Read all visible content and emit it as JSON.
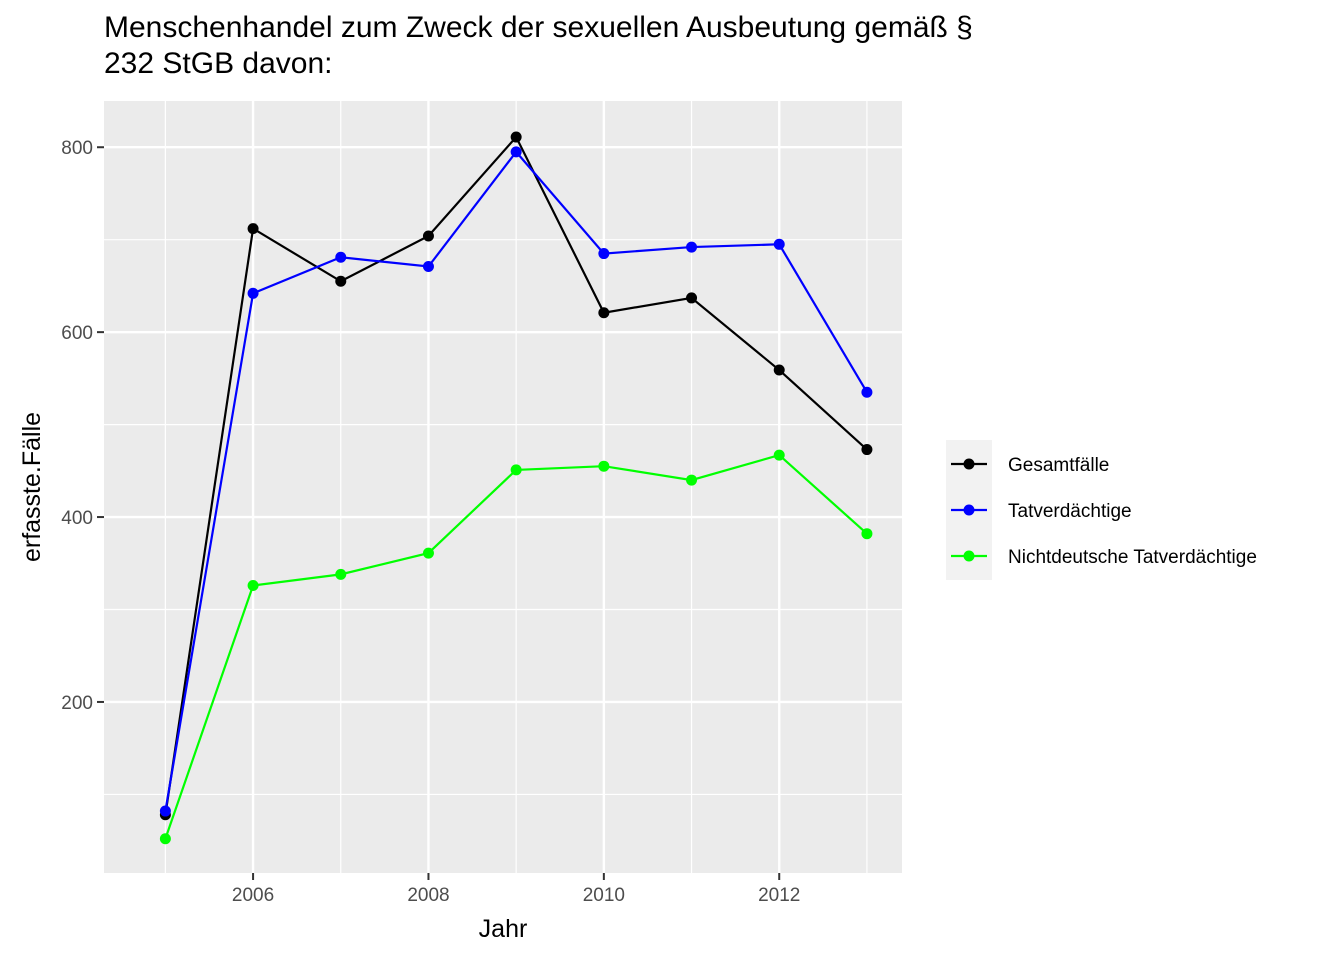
{
  "chart_data": {
    "type": "line",
    "title": "Menschenhandel zum Zweck der sexuellen Ausbeutung gemäß §\n232 StGB davon:",
    "xlabel": "Jahr",
    "ylabel": "erfasste.Fälle",
    "x": [
      2005,
      2006,
      2007,
      2008,
      2009,
      2010,
      2011,
      2012,
      2013
    ],
    "xlim": [
      2004.3,
      2013.4
    ],
    "ylim": [
      15,
      850
    ],
    "xticks": [
      2006,
      2008,
      2010,
      2012
    ],
    "yticks": [
      200,
      400,
      600,
      800
    ],
    "grid": true,
    "legend_position": "right",
    "series": [
      {
        "name": "Gesamtfälle",
        "color": "#000000",
        "values": [
          78,
          712,
          655,
          704,
          811,
          621,
          637,
          559,
          473
        ]
      },
      {
        "name": "Tatverdächtige",
        "color": "#0000ff",
        "values": [
          82,
          642,
          681,
          671,
          795,
          685,
          692,
          695,
          535
        ]
      },
      {
        "name": "Nichtdeutsche Tatverdächtige",
        "color": "#00ff00",
        "values": [
          52,
          326,
          338,
          361,
          451,
          455,
          440,
          467,
          382
        ]
      }
    ]
  }
}
